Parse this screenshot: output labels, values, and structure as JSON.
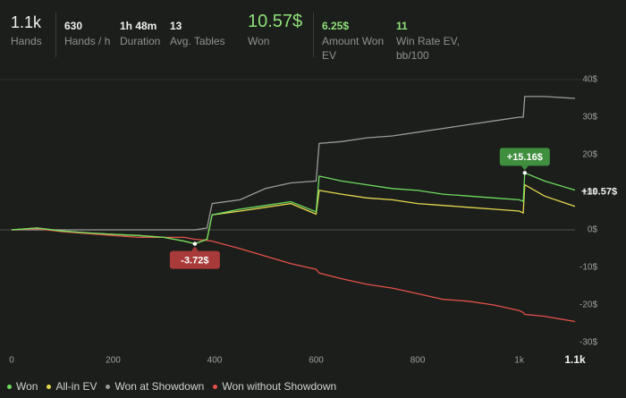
{
  "stats": [
    {
      "value": "1.1k",
      "label": "Hands"
    },
    {
      "value": "630",
      "label": "Hands / h"
    },
    {
      "value": "1h 48m",
      "label": "Duration"
    },
    {
      "value": "13",
      "label": "Avg. Tables"
    },
    {
      "value": "10.57$",
      "label": "Won"
    },
    {
      "value": "6.25$",
      "label": "Amount Won EV"
    },
    {
      "value": "11",
      "label": "Win Rate EV, bb/100"
    }
  ],
  "chart_data": {
    "type": "line",
    "x": [
      0,
      50,
      100,
      150,
      200,
      250,
      300,
      340,
      361,
      385,
      395,
      450,
      500,
      550,
      600,
      606,
      650,
      700,
      750,
      800,
      850,
      900,
      950,
      1000,
      1008,
      1011,
      1050,
      1110
    ],
    "series": [
      {
        "name": "Won",
        "color": "#6fdc5f",
        "values": [
          0,
          0.5,
          -0.3,
          -0.8,
          -1.2,
          -1.5,
          -2,
          -3,
          -3.72,
          -2.5,
          4,
          5.5,
          6.5,
          7.5,
          4.8,
          14.3,
          13,
          12,
          11,
          10.5,
          9.5,
          9,
          8.5,
          8,
          7.6,
          15.16,
          13,
          10.57
        ]
      },
      {
        "name": "All-in EV",
        "color": "#e6d84e",
        "values": [
          0,
          0.5,
          -0.3,
          -0.8,
          -1.2,
          -1.5,
          -2,
          -3,
          -3.72,
          -2.5,
          4,
          5,
          6,
          7,
          4.2,
          10.5,
          9.5,
          8.5,
          8,
          7,
          6.5,
          6,
          5.5,
          5,
          4.5,
          12,
          9,
          6.25
        ]
      },
      {
        "name": "Won at Showdown",
        "color": "#9a9a9a",
        "values": [
          0,
          0,
          0,
          0,
          0,
          0,
          0,
          0,
          0,
          0.5,
          7,
          8,
          11,
          12.5,
          13,
          23,
          23.5,
          24.5,
          25,
          26,
          27,
          28,
          29,
          30,
          30,
          35.5,
          35.5,
          35
        ]
      },
      {
        "name": "Won without Showdown",
        "color": "#e5504a",
        "values": [
          0,
          0.3,
          -0.5,
          -1,
          -1.5,
          -2,
          -2,
          -2,
          -2.5,
          -2.8,
          -3,
          -5,
          -7,
          -9,
          -10.5,
          -11.5,
          -13,
          -14.5,
          -15.5,
          -17,
          -18.5,
          -19,
          -20,
          -21.5,
          -22,
          -22.5,
          -23,
          -24.4
        ]
      }
    ],
    "xlim": [
      0,
      1110
    ],
    "xticks": [
      0,
      200,
      400,
      600,
      800,
      {
        "value": 1000,
        "label": "1k"
      },
      {
        "value": 1110,
        "label": "1.1k"
      }
    ],
    "ylim": [
      -32,
      40
    ],
    "yticks": [
      {
        "value": 40,
        "label": "40$"
      },
      {
        "value": 30,
        "label": "30$"
      },
      {
        "value": 20,
        "label": "20$"
      },
      {
        "value": 10,
        "label": "10$"
      },
      {
        "value": 0,
        "label": "0$"
      },
      {
        "value": -10,
        "label": "-10$"
      },
      {
        "value": -20,
        "label": "-20$"
      },
      {
        "value": -30,
        "label": "-30$"
      }
    ],
    "grid": true,
    "annotations": [
      {
        "text": "+15.16$",
        "x": 1011,
        "y": 15.16,
        "color": "#3f8f3f"
      },
      {
        "text": "-3.72$",
        "x": 361,
        "y": -3.72,
        "color": "#a83a3a"
      },
      {
        "text": "+10.57$",
        "x": 1110,
        "y": 10.57
      }
    ]
  }
}
